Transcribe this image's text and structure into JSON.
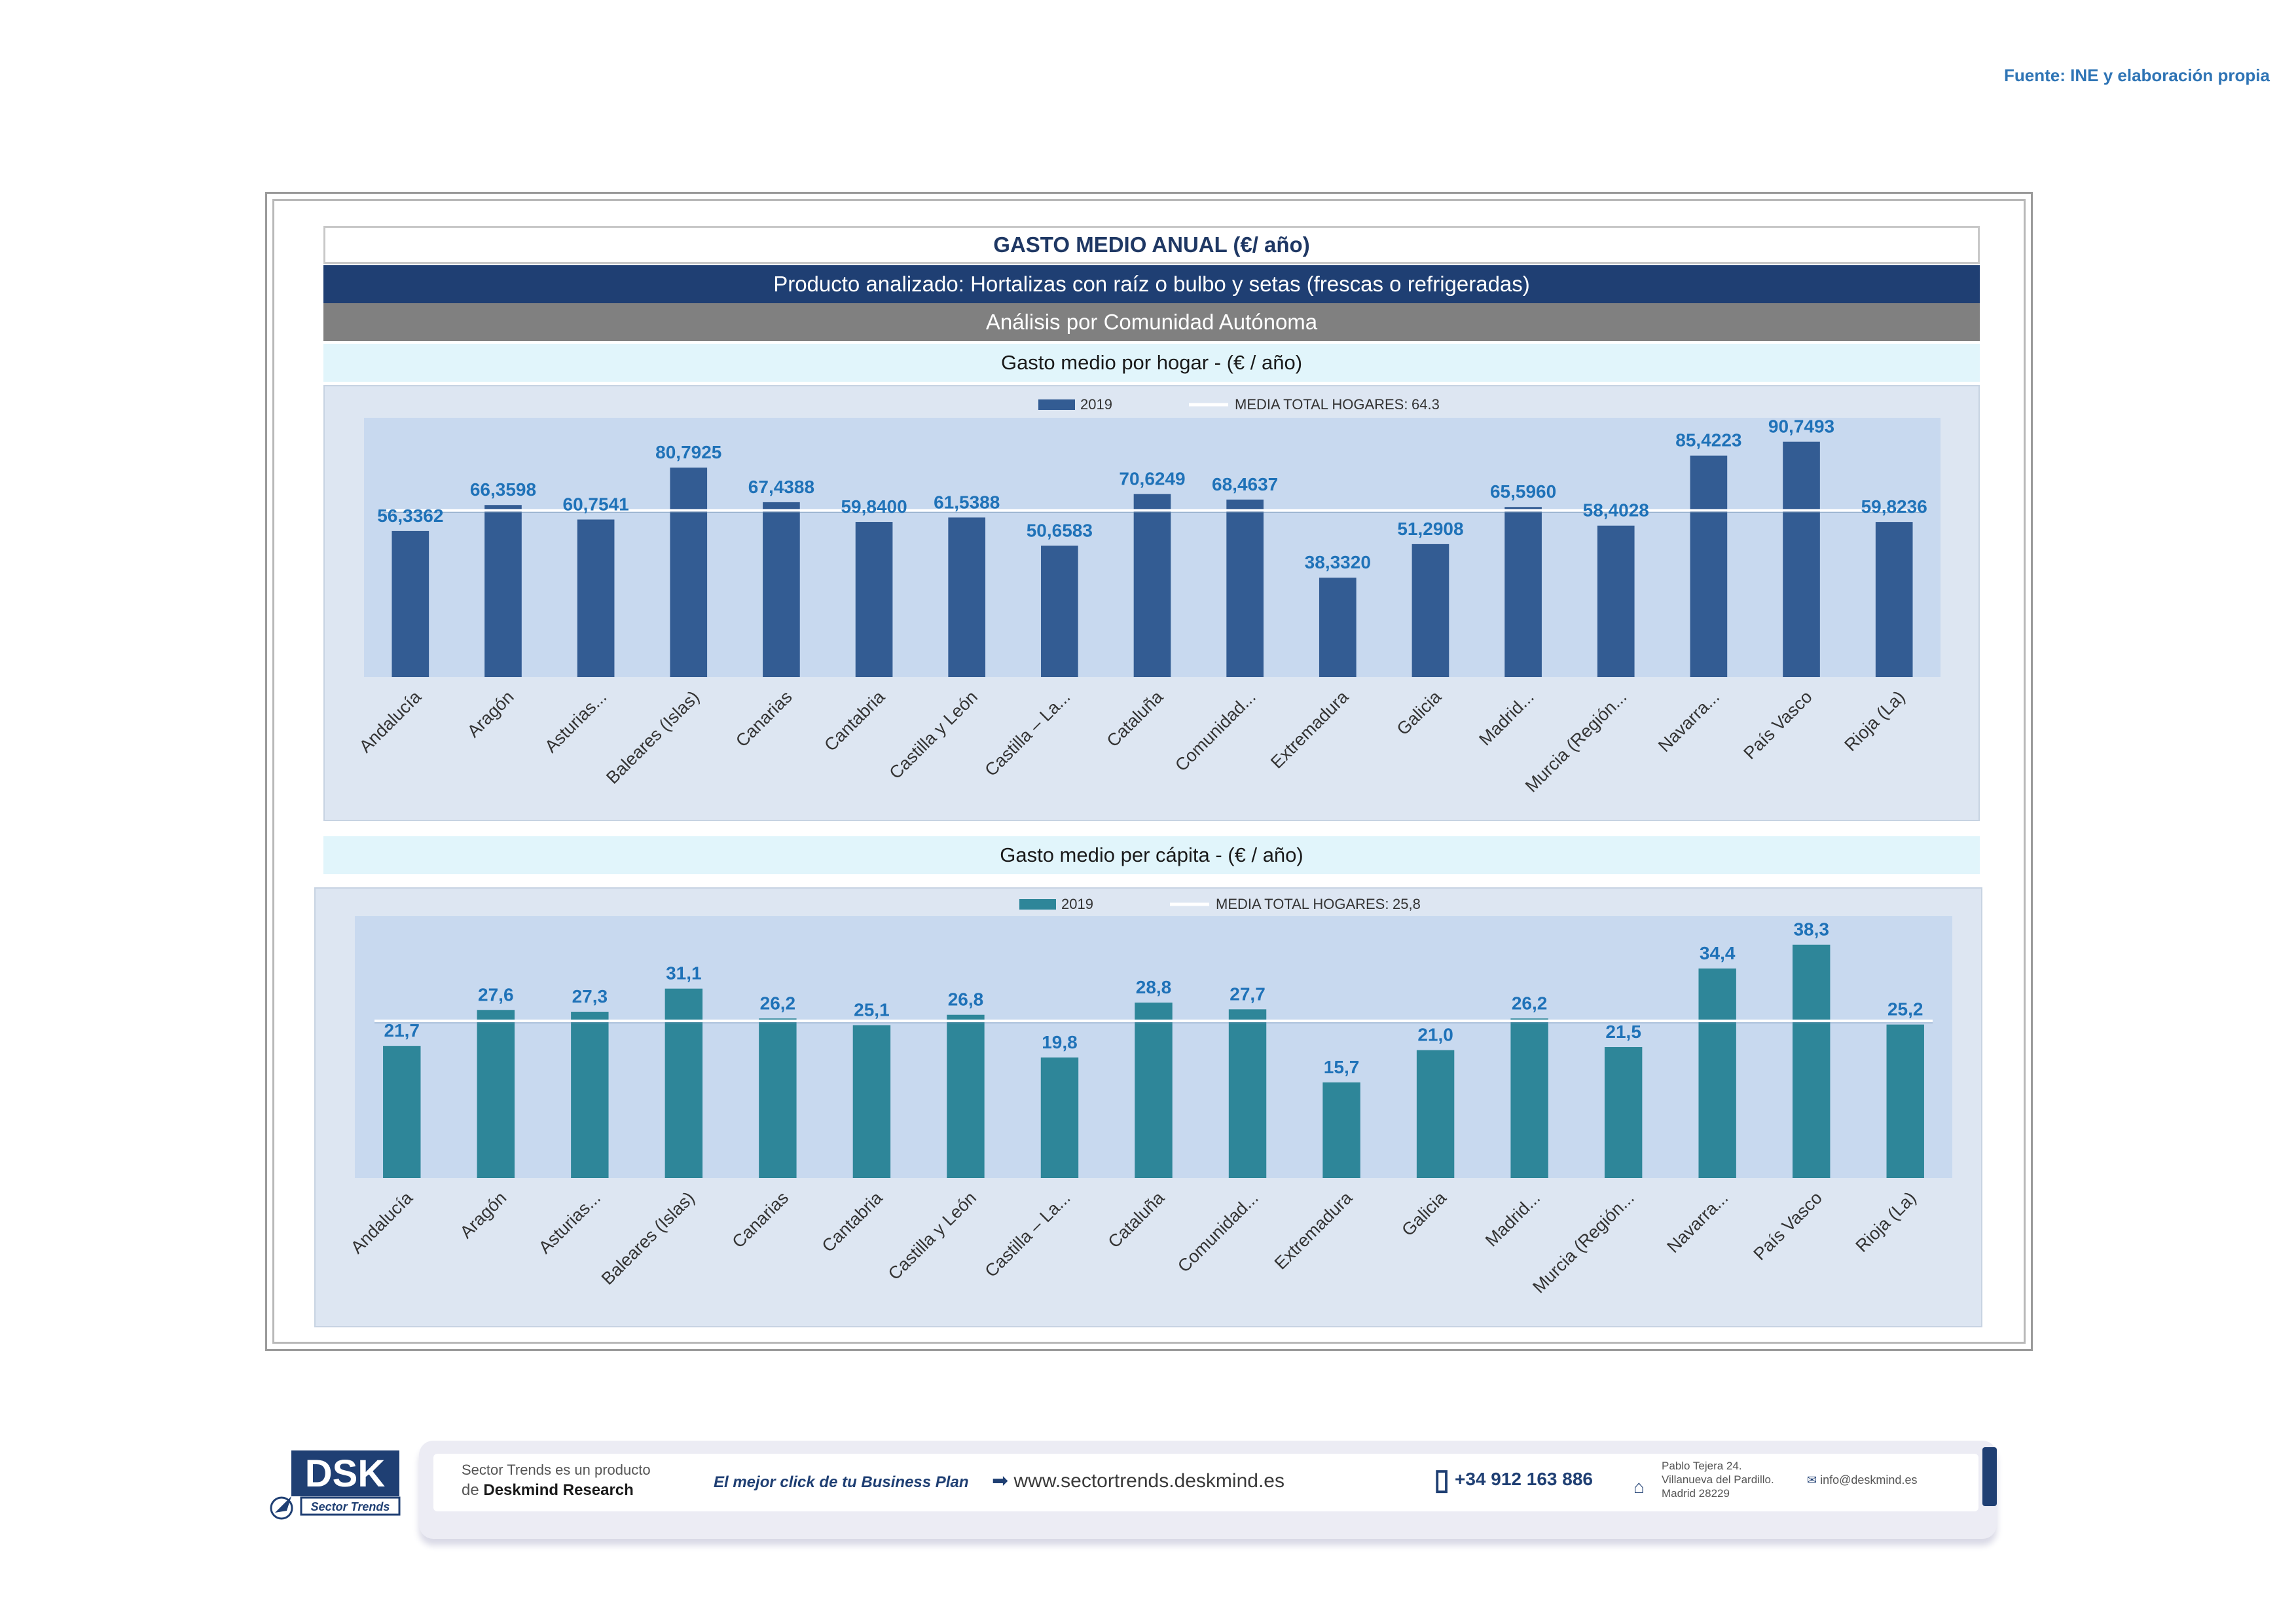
{
  "source": "Fuente: INE y elaboración propia",
  "header": {
    "title": "GASTO MEDIO ANUAL (€/ año)",
    "product": "Producto analizado: Hortalizas con raíz o bulbo y setas (frescas o refrigeradas)",
    "analysis": "Análisis por Comunidad Autónoma"
  },
  "colors": {
    "bar1": "#335c93",
    "bar2": "#2e8699",
    "plot_bg": "#c8d9ef",
    "label": "#1f72b8",
    "mean_line": "#ffffff"
  },
  "chart_data": [
    {
      "type": "bar",
      "title": "Gasto medio por hogar -  (€ / año)",
      "legend": {
        "series_label": "2019",
        "mean_label": "MEDIA TOTAL  HOGARES:",
        "mean_value": "64.3",
        "position": "top"
      },
      "mean": 64.3,
      "ylim": [
        0,
        100
      ],
      "categories": [
        "Andalucía",
        "Aragón",
        "Asturias...",
        "Baleares (Islas)",
        "Canarias",
        "Cantabria",
        "Castilla y León",
        "Castilla – La...",
        "Cataluña",
        "Comunidad...",
        "Extremadura",
        "Galicia",
        "Madrid...",
        "Murcia (Región...",
        "Navarra...",
        "País Vasco",
        "Rioja (La)"
      ],
      "series": [
        {
          "name": "2019",
          "values": [
            56.3362,
            66.3598,
            60.7541,
            80.7925,
            67.4388,
            59.84,
            61.5388,
            50.6583,
            70.6249,
            68.4637,
            38.332,
            51.2908,
            65.596,
            58.4028,
            85.4223,
            90.7493,
            59.8236
          ],
          "labels": [
            "56,3362",
            "66,3598",
            "60,7541",
            "80,7925",
            "67,4388",
            "59,8400",
            "61,5388",
            "50,6583",
            "70,6249",
            "68,4637",
            "38,3320",
            "51,2908",
            "65,5960",
            "58,4028",
            "85,4223",
            "90,7493",
            "59,8236"
          ]
        }
      ]
    },
    {
      "type": "bar",
      "title": "Gasto medio per cápita -  (€ / año)",
      "legend": {
        "series_label": "2019",
        "mean_label": "MEDIA TOTAL  HOGARES:",
        "mean_value": "25,8",
        "position": "top"
      },
      "mean": 25.8,
      "ylim": [
        0,
        43
      ],
      "categories": [
        "Andalucía",
        "Aragón",
        "Asturias...",
        "Baleares (Islas)",
        "Canarias",
        "Cantabria",
        "Castilla y León",
        "Castilla – La...",
        "Cataluña",
        "Comunidad...",
        "Extremadura",
        "Galicia",
        "Madrid...",
        "Murcia (Región...",
        "Navarra...",
        "País Vasco",
        "Rioja (La)"
      ],
      "series": [
        {
          "name": "2019",
          "values": [
            21.7,
            27.6,
            27.3,
            31.1,
            26.2,
            25.1,
            26.8,
            19.8,
            28.8,
            27.7,
            15.7,
            21.0,
            26.2,
            21.5,
            34.4,
            38.3,
            25.2
          ],
          "labels": [
            "21,7",
            "27,6",
            "27,3",
            "31,1",
            "26,2",
            "25,1",
            "26,8",
            "19,8",
            "28,8",
            "27,7",
            "15,7",
            "21,0",
            "26,2",
            "21,5",
            "34,4",
            "38,3",
            "25,2"
          ]
        }
      ]
    }
  ],
  "footer": {
    "logo_text": "DSK",
    "logo_sub": "Sector Trends",
    "product_line1": "Sector Trends es un producto",
    "product_line2_prefix": "de",
    "product_line2_brand": "Deskmind Research",
    "slogan": "El mejor click de tu Business Plan",
    "website": "www.sectortrends.deskmind.es",
    "phone": "+34 912 163 886",
    "address_line1": "Pablo Tejera 24.",
    "address_line2": "Villanueva del Pardillo.",
    "address_line3": "Madrid 28229",
    "email": "info@deskmind.es"
  }
}
